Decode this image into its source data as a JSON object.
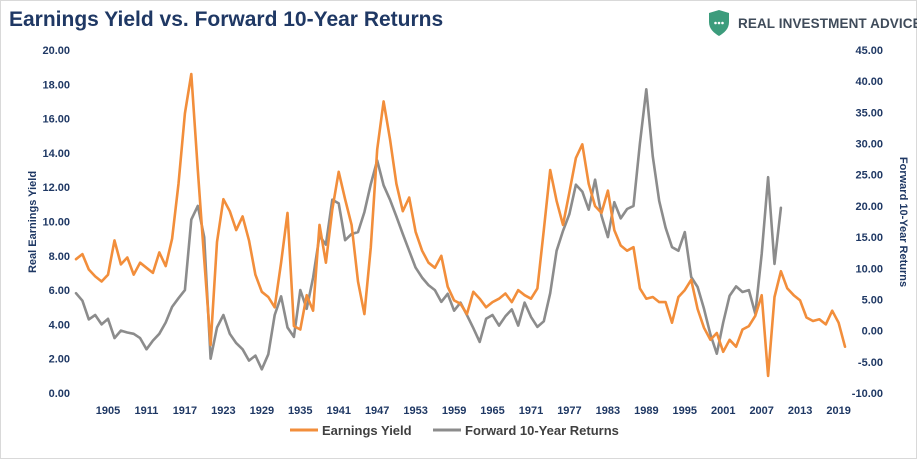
{
  "title": "Earnings Yield vs. Forward 10-Year Returns",
  "brand": {
    "name": "REAL INVESTMENT ADVICE",
    "logo_icon": "shield-icon",
    "logo_color": "#3c9c7c"
  },
  "chart_data": {
    "type": "line",
    "title": "Earnings Yield vs. Forward 10-Year Returns",
    "ylabel_left": "Real Earnings Yield",
    "ylabel_right": "Forward 10-Year Returns",
    "ylim_left": [
      0,
      20
    ],
    "ylim_right": [
      -10,
      45
    ],
    "yticks_left": [
      "0.00",
      "2.00",
      "4.00",
      "6.00",
      "8.00",
      "10.00",
      "12.00",
      "14.00",
      "16.00",
      "18.00",
      "20.00"
    ],
    "yticks_right": [
      "-10.00",
      "-5.00",
      "0.00",
      "5.00",
      "10.00",
      "15.00",
      "20.00",
      "25.00",
      "30.00",
      "35.00",
      "40.00",
      "45.00"
    ],
    "xlim": [
      1900,
      2020
    ],
    "xticks": [
      "1905",
      "1911",
      "1917",
      "1923",
      "1929",
      "1935",
      "1941",
      "1947",
      "1953",
      "1959",
      "1965",
      "1971",
      "1977",
      "1983",
      "1989",
      "1995",
      "2001",
      "2007",
      "2013",
      "2019"
    ],
    "grid": false,
    "legend_position": "bottom",
    "series": [
      {
        "name": "Earnings Yield",
        "axis": "left",
        "color": "#f28e3b",
        "x": [
          1900,
          1901,
          1902,
          1903,
          1904,
          1905,
          1906,
          1907,
          1908,
          1909,
          1910,
          1911,
          1912,
          1913,
          1914,
          1915,
          1916,
          1917,
          1918,
          1919,
          1920,
          1921,
          1922,
          1923,
          1924,
          1925,
          1926,
          1927,
          1928,
          1929,
          1930,
          1931,
          1932,
          1933,
          1934,
          1935,
          1936,
          1937,
          1938,
          1939,
          1940,
          1941,
          1942,
          1943,
          1944,
          1945,
          1946,
          1947,
          1948,
          1949,
          1950,
          1951,
          1952,
          1953,
          1954,
          1955,
          1956,
          1957,
          1958,
          1959,
          1960,
          1961,
          1962,
          1963,
          1964,
          1965,
          1966,
          1967,
          1968,
          1969,
          1970,
          1971,
          1972,
          1973,
          1974,
          1975,
          1976,
          1977,
          1978,
          1979,
          1980,
          1981,
          1982,
          1983,
          1984,
          1985,
          1986,
          1987,
          1988,
          1989,
          1990,
          1991,
          1992,
          1993,
          1994,
          1995,
          1996,
          1997,
          1998,
          1999,
          2000,
          2001,
          2002,
          2003,
          2004,
          2005,
          2006,
          2007,
          2008,
          2009,
          2010,
          2011,
          2012,
          2013,
          2014,
          2015,
          2016,
          2017,
          2018,
          2019,
          2020
        ],
        "values": [
          7.8,
          8.1,
          7.2,
          6.8,
          6.5,
          6.9,
          8.9,
          7.5,
          7.9,
          6.9,
          7.6,
          7.3,
          7.0,
          8.2,
          7.4,
          9.0,
          12.2,
          16.3,
          18.6,
          13.0,
          7.8,
          2.8,
          8.8,
          11.3,
          10.6,
          9.5,
          10.3,
          8.9,
          6.9,
          5.9,
          5.6,
          5.0,
          7.6,
          10.5,
          3.9,
          3.7,
          5.7,
          4.8,
          9.8,
          7.6,
          10.7,
          12.9,
          11.3,
          9.8,
          6.5,
          4.6,
          8.5,
          14.2,
          17.0,
          14.8,
          12.2,
          10.6,
          11.4,
          9.4,
          8.3,
          7.6,
          7.3,
          8.0,
          6.2,
          5.4,
          5.2,
          4.6,
          5.9,
          5.5,
          5.0,
          5.3,
          5.5,
          5.8,
          5.3,
          6.0,
          5.7,
          5.5,
          6.1,
          9.5,
          13.0,
          11.2,
          9.8,
          11.7,
          13.7,
          14.5,
          12.2,
          10.9,
          10.5,
          11.8,
          9.5,
          8.6,
          8.3,
          8.5,
          6.1,
          5.5,
          5.6,
          5.3,
          5.3,
          4.1,
          5.6,
          6.0,
          6.6,
          4.9,
          3.8,
          3.1,
          3.5,
          2.4,
          3.1,
          2.7,
          3.7,
          3.9,
          4.5,
          5.7,
          1.0,
          5.6,
          7.1,
          6.1,
          5.7,
          5.4,
          4.4,
          4.2,
          4.3,
          4.0,
          4.8,
          4.1,
          2.7
        ]
      },
      {
        "name": "Forward 10-Year Returns",
        "axis": "right",
        "color": "#8c8c8c",
        "x": [
          1900,
          1901,
          1902,
          1903,
          1904,
          1905,
          1906,
          1907,
          1908,
          1909,
          1910,
          1911,
          1912,
          1913,
          1914,
          1915,
          1916,
          1917,
          1918,
          1919,
          1920,
          1921,
          1922,
          1923,
          1924,
          1925,
          1926,
          1927,
          1928,
          1929,
          1930,
          1931,
          1932,
          1933,
          1934,
          1935,
          1936,
          1937,
          1938,
          1939,
          1940,
          1941,
          1942,
          1943,
          1944,
          1945,
          1946,
          1947,
          1948,
          1949,
          1950,
          1951,
          1952,
          1953,
          1954,
          1955,
          1956,
          1957,
          1958,
          1959,
          1960,
          1961,
          1962,
          1963,
          1964,
          1965,
          1966,
          1967,
          1968,
          1969,
          1970,
          1971,
          1972,
          1973,
          1974,
          1975,
          1976,
          1977,
          1978,
          1979,
          1980,
          1981,
          1982,
          1983,
          1984,
          1985,
          1986,
          1987,
          1988,
          1989,
          1990,
          1991,
          1992,
          1993,
          1994,
          1995,
          1996,
          1997,
          1998,
          1999,
          2000,
          2001,
          2002,
          2003,
          2004,
          2005,
          2006,
          2007,
          2008,
          2009,
          2010
        ],
        "values": [
          6.0,
          4.8,
          1.8,
          2.5,
          1.0,
          1.9,
          -1.2,
          0.0,
          -0.3,
          -0.5,
          -1.2,
          -3.0,
          -1.6,
          -0.5,
          1.3,
          3.8,
          5.2,
          6.5,
          17.8,
          20.0,
          15.0,
          -4.5,
          0.5,
          2.5,
          -0.5,
          -2.0,
          -3.0,
          -4.8,
          -4.0,
          -6.2,
          -3.8,
          2.5,
          5.5,
          0.5,
          -1.0,
          6.5,
          3.5,
          8.5,
          15.2,
          13.8,
          21.0,
          20.4,
          14.5,
          15.5,
          15.8,
          19.0,
          23.5,
          27.3,
          23.3,
          21.0,
          18.3,
          15.5,
          12.8,
          10.1,
          8.5,
          7.3,
          6.5,
          4.6,
          5.9,
          3.2,
          4.5,
          2.5,
          0.4,
          -1.8,
          1.9,
          2.5,
          0.8,
          2.3,
          3.4,
          0.8,
          4.5,
          2.2,
          0.6,
          1.5,
          6.0,
          12.8,
          16.0,
          18.7,
          23.4,
          22.3,
          19.4,
          24.2,
          18.4,
          15.0,
          20.6,
          18.0,
          19.5,
          20.0,
          30.0,
          38.7,
          27.9,
          20.8,
          16.5,
          13.4,
          12.8,
          15.8,
          8.6,
          7.0,
          3.5,
          -0.6,
          -3.7,
          1.3,
          5.6,
          7.1,
          6.2,
          6.5,
          2.7,
          12.3,
          24.6,
          10.7,
          19.7
        ]
      }
    ]
  }
}
